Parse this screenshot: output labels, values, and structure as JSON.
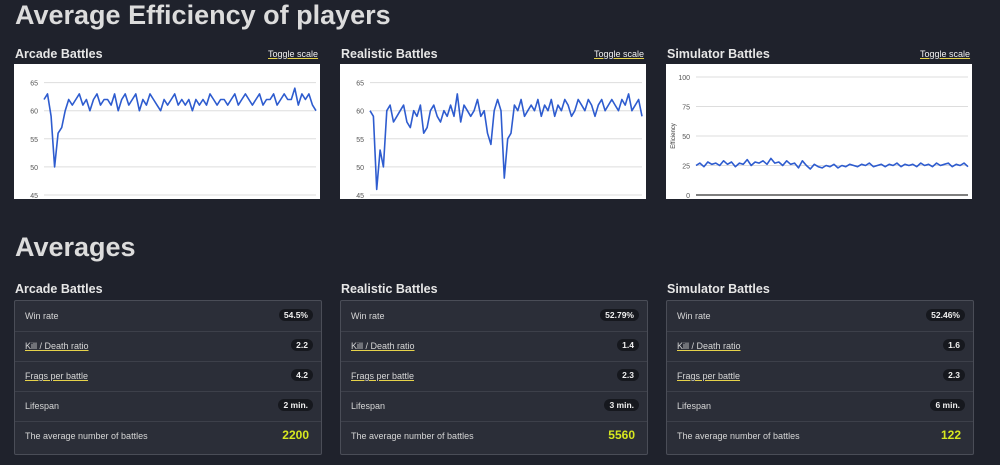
{
  "headings": {
    "efficiency": "Average Efficiency of players",
    "averages": "Averages"
  },
  "toggle_label": "Toggle scale",
  "colors": {
    "line": "#2e5ccf",
    "accent": "#d7e81f",
    "background": "#1f222c"
  },
  "columns": [
    {
      "title": "Arcade Battles",
      "stats": {
        "win_rate_label": "Win rate",
        "win_rate": "54.5%",
        "kd_label": "Kill / Death ratio",
        "kd": "2.2",
        "frags_label": "Frags per battle",
        "frags": "4.2",
        "lifespan_label": "Lifespan",
        "lifespan": "2 min.",
        "battles_label": "The average number of battles",
        "battles": "2200"
      }
    },
    {
      "title": "Realistic Battles",
      "stats": {
        "win_rate_label": "Win rate",
        "win_rate": "52.79%",
        "kd_label": "Kill / Death ratio",
        "kd": "1.4",
        "frags_label": "Frags per battle",
        "frags": "2.3",
        "lifespan_label": "Lifespan",
        "lifespan": "3 min.",
        "battles_label": "The average number of battles",
        "battles": "5560"
      }
    },
    {
      "title": "Simulator Battles",
      "stats": {
        "win_rate_label": "Win rate",
        "win_rate": "52.46%",
        "kd_label": "Kill / Death ratio",
        "kd": "1.6",
        "frags_label": "Frags per battle",
        "frags": "2.3",
        "lifespan_label": "Lifespan",
        "lifespan": "6 min.",
        "battles_label": "The average number of battles",
        "battles": "122"
      }
    }
  ],
  "chart_data": [
    {
      "type": "line",
      "title": "Arcade Battles",
      "xlabel": "",
      "ylabel": "",
      "ylim": [
        45,
        66
      ],
      "yticks": [
        45,
        50,
        55,
        60,
        65
      ],
      "series": [
        {
          "values": [
            62,
            63,
            59,
            50,
            56,
            57,
            60,
            62,
            61,
            62,
            63,
            61,
            62,
            60,
            62,
            63,
            61,
            62,
            62,
            61,
            63,
            60,
            62,
            63,
            61,
            62,
            63,
            60,
            62,
            61,
            63,
            62,
            61,
            60,
            62,
            61,
            62,
            63,
            61,
            62,
            61,
            62,
            60,
            62,
            61,
            62,
            61,
            63,
            62,
            61,
            62,
            62,
            61,
            62,
            63,
            61,
            62,
            63,
            62,
            61,
            62,
            63,
            61,
            62,
            62,
            63,
            61,
            62,
            63,
            62,
            62,
            64,
            61,
            63,
            62,
            63,
            61,
            60
          ]
        }
      ]
    },
    {
      "type": "line",
      "title": "Realistic Battles",
      "xlabel": "",
      "ylabel": "",
      "ylim": [
        45,
        66
      ],
      "yticks": [
        45,
        50,
        55,
        60,
        65
      ],
      "series": [
        {
          "values": [
            60,
            59,
            46,
            53,
            50,
            60,
            61,
            58,
            59,
            60,
            61,
            58,
            57,
            60,
            59,
            61,
            56,
            57,
            60,
            61,
            59,
            58,
            60,
            59,
            61,
            59,
            63,
            58,
            61,
            60,
            59,
            60,
            62,
            59,
            60,
            56,
            54,
            60,
            62,
            60,
            48,
            55,
            56,
            61,
            60,
            62,
            59,
            60,
            61,
            60,
            62,
            59,
            61,
            60,
            62,
            59,
            61,
            60,
            62,
            61,
            59,
            60,
            62,
            61,
            60,
            62,
            61,
            59,
            61,
            62,
            60,
            61,
            62,
            61,
            60,
            62,
            61,
            63,
            60,
            61,
            62,
            59
          ]
        }
      ]
    },
    {
      "type": "line",
      "title": "Simulator Battles",
      "xlabel": "",
      "ylabel": "Efficiency",
      "ylim": [
        0,
        100
      ],
      "yticks": [
        0,
        25,
        50,
        75,
        100
      ],
      "series": [
        {
          "values": [
            25,
            27,
            24,
            28,
            26,
            27,
            25,
            29,
            26,
            28,
            24,
            27,
            26,
            30,
            25,
            28,
            27,
            29,
            26,
            31,
            27,
            28,
            25,
            29,
            26,
            27,
            23,
            29,
            25,
            22,
            26,
            24,
            23,
            25,
            24,
            26,
            23,
            25,
            24,
            26,
            25,
            24,
            26,
            25,
            27,
            24,
            25,
            26,
            24,
            26,
            25,
            27,
            24,
            26,
            25,
            26,
            24,
            27,
            25,
            26,
            24,
            27,
            25,
            26,
            27,
            24,
            26,
            25,
            27,
            24
          ]
        }
      ]
    }
  ]
}
